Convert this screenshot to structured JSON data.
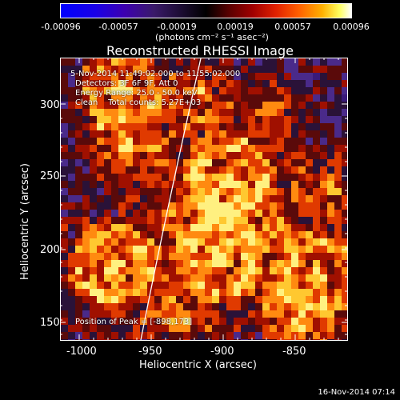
{
  "colorbar": {
    "ticks": [
      "-0.00096",
      "-0.00057",
      "-0.00019",
      "0.00019",
      "0.00057",
      "0.00096"
    ],
    "units": "(photons cm⁻² s⁻¹ asec⁻²)"
  },
  "title": "Reconstructed RHESSI Image",
  "info": {
    "time": "5-Nov-2014 11:49:02.000 to 11:55:02.000",
    "detectors": "Detectors: 3F 6F 9F, Att 0",
    "energy": "Energy Range: 25.0 - 50.0 keV",
    "clean": "Clean    Total counts: 5.27E+03",
    "peak": "Position of Peak = [-898,173]"
  },
  "axes": {
    "xlabel": "Heliocentric X (arcsec)",
    "ylabel": "Heliocentric Y (arcsec)",
    "xticks": [
      "-1000",
      "-950",
      "-900",
      "-850"
    ],
    "yticks": [
      "150",
      "200",
      "250",
      "300"
    ]
  },
  "footer": "16-Nov-2014 07:14",
  "colors": {
    "limb": "#ffffff",
    "frame": "#ffffff"
  }
}
